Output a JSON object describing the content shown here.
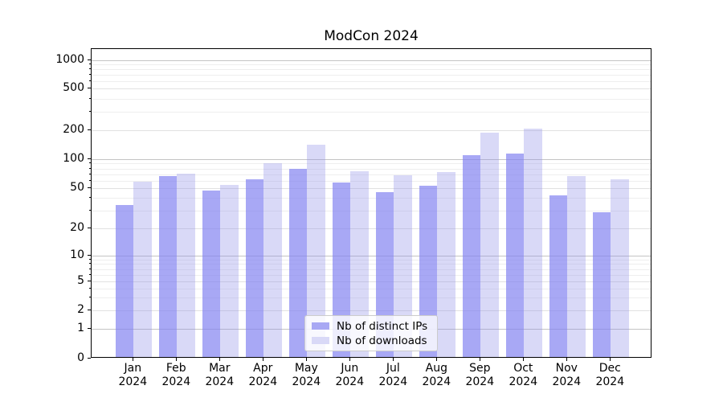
{
  "title": "ModCon 2024",
  "chart_data": {
    "type": "bar",
    "title": "ModCon 2024",
    "categories": [
      "Jan 2024",
      "Feb 2024",
      "Mar 2024",
      "Apr 2024",
      "May 2024",
      "Jun 2024",
      "Jul 2024",
      "Aug 2024",
      "Sep 2024",
      "Oct 2024",
      "Nov 2024",
      "Dec 2024"
    ],
    "x_tick_labels": [
      {
        "month": "Jan",
        "year": "2024"
      },
      {
        "month": "Feb",
        "year": "2024"
      },
      {
        "month": "Mar",
        "year": "2024"
      },
      {
        "month": "Apr",
        "year": "2024"
      },
      {
        "month": "May",
        "year": "2024"
      },
      {
        "month": "Jun",
        "year": "2024"
      },
      {
        "month": "Jul",
        "year": "2024"
      },
      {
        "month": "Aug",
        "year": "2024"
      },
      {
        "month": "Sep",
        "year": "2024"
      },
      {
        "month": "Oct",
        "year": "2024"
      },
      {
        "month": "Nov",
        "year": "2024"
      },
      {
        "month": "Dec",
        "year": "2024"
      }
    ],
    "series": [
      {
        "name": "Nb of distinct IPs",
        "color": "#a8a8f4",
        "color_rgba": "rgba(131,131,241,0.7)",
        "values": [
          33,
          64,
          46,
          60,
          76,
          55,
          44,
          51,
          105,
          110,
          41,
          28
        ]
      },
      {
        "name": "Nb of downloads",
        "color": "#d9d9f7",
        "color_rgba": "rgba(146,146,232,0.35)",
        "values": [
          56,
          68,
          52,
          87,
          137,
          72,
          65,
          71,
          180,
          200,
          64,
          60
        ]
      }
    ],
    "xlabel": "",
    "ylabel": "",
    "yscale": "symlog",
    "yticks": [
      0,
      1,
      2,
      5,
      10,
      20,
      50,
      100,
      200,
      500,
      1000
    ],
    "ylim": [
      0,
      1300
    ],
    "grid": true,
    "grid_color_major": "#c4c4c4",
    "grid_color_labeled": "#e1e1e1",
    "grid_color_minor": "#eeeeee",
    "legend_position": "lower center"
  }
}
